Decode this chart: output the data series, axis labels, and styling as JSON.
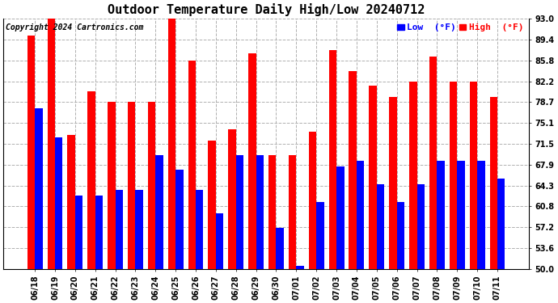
{
  "title": "Outdoor Temperature Daily High/Low 20240712",
  "copyright": "Copyright 2024 Cartronics.com",
  "dates": [
    "06/18",
    "06/19",
    "06/20",
    "06/21",
    "06/22",
    "06/23",
    "06/24",
    "06/25",
    "06/26",
    "06/27",
    "06/28",
    "06/29",
    "06/30",
    "07/01",
    "07/02",
    "07/03",
    "07/04",
    "07/05",
    "07/06",
    "07/07",
    "07/08",
    "07/09",
    "07/10",
    "07/11"
  ],
  "highs": [
    90.0,
    93.0,
    73.0,
    80.5,
    78.7,
    78.7,
    78.7,
    93.0,
    85.8,
    72.0,
    74.0,
    87.0,
    69.5,
    69.5,
    73.5,
    87.5,
    84.0,
    81.5,
    79.5,
    82.2,
    86.5,
    82.2,
    82.2,
    79.5
  ],
  "lows": [
    77.5,
    72.5,
    62.5,
    62.5,
    63.5,
    63.5,
    69.5,
    67.0,
    63.5,
    59.5,
    69.5,
    69.5,
    57.0,
    50.5,
    61.5,
    67.5,
    68.5,
    64.5,
    61.5,
    64.5,
    68.5,
    68.5,
    68.5,
    65.5
  ],
  "ylim_min": 50.0,
  "ylim_max": 93.0,
  "yticks": [
    50.0,
    53.6,
    57.2,
    60.8,
    64.3,
    67.9,
    71.5,
    75.1,
    78.7,
    82.2,
    85.8,
    89.4,
    93.0
  ],
  "bar_width": 0.38,
  "high_color": "#ff0000",
  "low_color": "#0000ff",
  "background_color": "#ffffff",
  "plot_bg_color": "#ffffff",
  "grid_color": "#b0b0b0",
  "title_fontsize": 11,
  "copyright_fontsize": 7,
  "tick_fontsize": 7,
  "legend_fontsize": 8
}
